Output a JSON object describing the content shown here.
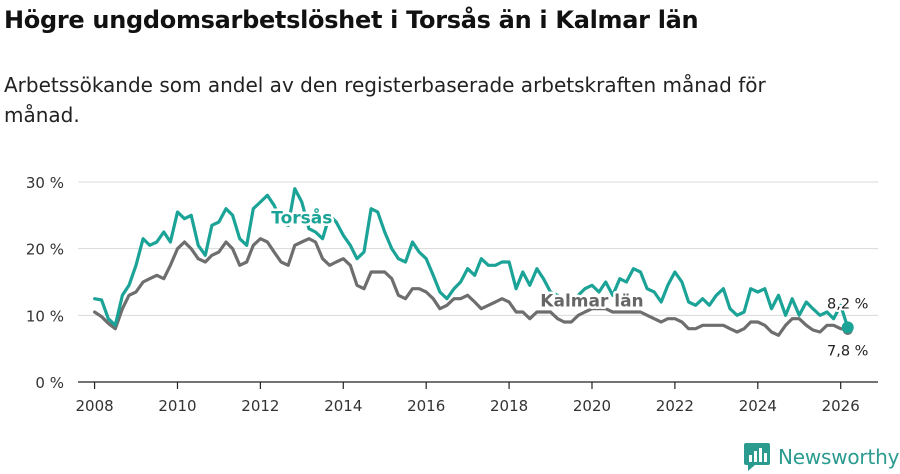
{
  "header": {
    "title": "Högre ungdomsarbetslöshet i Torsås än i Kalmar län",
    "subtitle": "Arbetssökande som andel av den registerbaserade arbetskraften månad för månad."
  },
  "brand": {
    "name": "Newsworthy",
    "color": "#2a9b8e"
  },
  "chart_data": {
    "type": "line",
    "title": "Högre ungdomsarbetslöshet i Torsås än i Kalmar län",
    "subtitle": "Arbetssökande som andel av den registerbaserade arbetskraften månad för månad.",
    "xlabel": "",
    "ylabel": "",
    "xlim": [
      2007.6,
      2026.9
    ],
    "ylim": [
      0,
      30
    ],
    "x_ticks": [
      2008,
      2010,
      2012,
      2014,
      2016,
      2018,
      2020,
      2022,
      2024,
      2026
    ],
    "x_tick_labels": [
      "2008",
      "2010",
      "2012",
      "2014",
      "2016",
      "2018",
      "2020",
      "2022",
      "2024",
      "2026"
    ],
    "y_ticks": [
      0,
      10,
      20,
      30
    ],
    "y_tick_labels": [
      "0 %",
      "10 %",
      "20 %",
      "30 %"
    ],
    "grid": true,
    "series": [
      {
        "name": "Torsås",
        "label": "Torsås",
        "color": "#1aa396",
        "end_label": "8,2 %",
        "points": [
          [
            2008.0,
            12.5
          ],
          [
            2008.17,
            12.3
          ],
          [
            2008.33,
            9.5
          ],
          [
            2008.5,
            8.5
          ],
          [
            2008.67,
            13.0
          ],
          [
            2008.83,
            14.5
          ],
          [
            2009.0,
            17.5
          ],
          [
            2009.17,
            21.5
          ],
          [
            2009.33,
            20.5
          ],
          [
            2009.5,
            21.0
          ],
          [
            2009.67,
            22.5
          ],
          [
            2009.83,
            21.0
          ],
          [
            2010.0,
            25.5
          ],
          [
            2010.17,
            24.5
          ],
          [
            2010.33,
            25.0
          ],
          [
            2010.5,
            20.5
          ],
          [
            2010.67,
            19.0
          ],
          [
            2010.83,
            23.5
          ],
          [
            2011.0,
            24.0
          ],
          [
            2011.17,
            26.0
          ],
          [
            2011.33,
            25.0
          ],
          [
            2011.5,
            21.5
          ],
          [
            2011.67,
            20.5
          ],
          [
            2011.83,
            26.0
          ],
          [
            2012.0,
            27.0
          ],
          [
            2012.17,
            28.0
          ],
          [
            2012.33,
            26.5
          ],
          [
            2012.5,
            24.0
          ],
          [
            2012.67,
            23.5
          ],
          [
            2012.83,
            29.0
          ],
          [
            2013.0,
            27.0
          ],
          [
            2013.17,
            23.0
          ],
          [
            2013.33,
            22.5
          ],
          [
            2013.5,
            21.5
          ],
          [
            2013.67,
            25.0
          ],
          [
            2013.83,
            24.0
          ],
          [
            2014.0,
            22.0
          ],
          [
            2014.17,
            20.5
          ],
          [
            2014.33,
            18.5
          ],
          [
            2014.5,
            19.5
          ],
          [
            2014.67,
            26.0
          ],
          [
            2014.83,
            25.5
          ],
          [
            2015.0,
            22.5
          ],
          [
            2015.17,
            20.0
          ],
          [
            2015.33,
            18.5
          ],
          [
            2015.5,
            18.0
          ],
          [
            2015.67,
            21.0
          ],
          [
            2015.83,
            19.5
          ],
          [
            2016.0,
            18.5
          ],
          [
            2016.17,
            16.0
          ],
          [
            2016.33,
            13.5
          ],
          [
            2016.5,
            12.5
          ],
          [
            2016.67,
            14.0
          ],
          [
            2016.83,
            15.0
          ],
          [
            2017.0,
            17.0
          ],
          [
            2017.17,
            16.0
          ],
          [
            2017.33,
            18.5
          ],
          [
            2017.5,
            17.5
          ],
          [
            2017.67,
            17.5
          ],
          [
            2017.83,
            18.0
          ],
          [
            2018.0,
            18.0
          ],
          [
            2018.17,
            14.0
          ],
          [
            2018.33,
            16.5
          ],
          [
            2018.5,
            14.5
          ],
          [
            2018.67,
            17.0
          ],
          [
            2018.83,
            15.5
          ],
          [
            2019.0,
            13.5
          ],
          [
            2019.17,
            13.0
          ],
          [
            2019.33,
            12.5
          ],
          [
            2019.5,
            11.5
          ],
          [
            2019.67,
            13.0
          ],
          [
            2019.83,
            14.0
          ],
          [
            2020.0,
            14.5
          ],
          [
            2020.17,
            13.5
          ],
          [
            2020.33,
            15.0
          ],
          [
            2020.5,
            13.0
          ],
          [
            2020.67,
            15.5
          ],
          [
            2020.83,
            15.0
          ],
          [
            2021.0,
            17.0
          ],
          [
            2021.17,
            16.5
          ],
          [
            2021.33,
            14.0
          ],
          [
            2021.5,
            13.5
          ],
          [
            2021.67,
            12.0
          ],
          [
            2021.83,
            14.5
          ],
          [
            2022.0,
            16.5
          ],
          [
            2022.17,
            15.0
          ],
          [
            2022.33,
            12.0
          ],
          [
            2022.5,
            11.5
          ],
          [
            2022.67,
            12.5
          ],
          [
            2022.83,
            11.5
          ],
          [
            2023.0,
            13.0
          ],
          [
            2023.17,
            14.0
          ],
          [
            2023.33,
            11.0
          ],
          [
            2023.5,
            10.0
          ],
          [
            2023.67,
            10.5
          ],
          [
            2023.83,
            14.0
          ],
          [
            2024.0,
            13.5
          ],
          [
            2024.17,
            14.0
          ],
          [
            2024.33,
            11.0
          ],
          [
            2024.5,
            13.0
          ],
          [
            2024.67,
            10.0
          ],
          [
            2024.83,
            12.5
          ],
          [
            2025.0,
            10.0
          ],
          [
            2025.17,
            12.0
          ],
          [
            2025.33,
            11.0
          ],
          [
            2025.5,
            10.0
          ],
          [
            2025.67,
            10.5
          ],
          [
            2025.83,
            9.5
          ],
          [
            2026.0,
            11.5
          ],
          [
            2026.17,
            8.2
          ]
        ]
      },
      {
        "name": "Kalmar län",
        "label": "Kalmar län",
        "color": "#6e6e6e",
        "end_label": "7,8 %",
        "points": [
          [
            2008.0,
            10.5
          ],
          [
            2008.17,
            9.8
          ],
          [
            2008.33,
            8.8
          ],
          [
            2008.5,
            8.0
          ],
          [
            2008.67,
            11.0
          ],
          [
            2008.83,
            13.0
          ],
          [
            2009.0,
            13.5
          ],
          [
            2009.17,
            15.0
          ],
          [
            2009.33,
            15.5
          ],
          [
            2009.5,
            16.0
          ],
          [
            2009.67,
            15.5
          ],
          [
            2009.83,
            17.5
          ],
          [
            2010.0,
            20.0
          ],
          [
            2010.17,
            21.0
          ],
          [
            2010.33,
            20.0
          ],
          [
            2010.5,
            18.5
          ],
          [
            2010.67,
            18.0
          ],
          [
            2010.83,
            19.0
          ],
          [
            2011.0,
            19.5
          ],
          [
            2011.17,
            21.0
          ],
          [
            2011.33,
            20.0
          ],
          [
            2011.5,
            17.5
          ],
          [
            2011.67,
            18.0
          ],
          [
            2011.83,
            20.5
          ],
          [
            2012.0,
            21.5
          ],
          [
            2012.17,
            21.0
          ],
          [
            2012.33,
            19.5
          ],
          [
            2012.5,
            18.0
          ],
          [
            2012.67,
            17.5
          ],
          [
            2012.83,
            20.5
          ],
          [
            2013.0,
            21.0
          ],
          [
            2013.17,
            21.5
          ],
          [
            2013.33,
            21.0
          ],
          [
            2013.5,
            18.5
          ],
          [
            2013.67,
            17.5
          ],
          [
            2013.83,
            18.0
          ],
          [
            2014.0,
            18.5
          ],
          [
            2014.17,
            17.5
          ],
          [
            2014.33,
            14.5
          ],
          [
            2014.5,
            14.0
          ],
          [
            2014.67,
            16.5
          ],
          [
            2014.83,
            16.5
          ],
          [
            2015.0,
            16.5
          ],
          [
            2015.17,
            15.5
          ],
          [
            2015.33,
            13.0
          ],
          [
            2015.5,
            12.5
          ],
          [
            2015.67,
            14.0
          ],
          [
            2015.83,
            14.0
          ],
          [
            2016.0,
            13.5
          ],
          [
            2016.17,
            12.5
          ],
          [
            2016.33,
            11.0
          ],
          [
            2016.5,
            11.5
          ],
          [
            2016.67,
            12.5
          ],
          [
            2016.83,
            12.5
          ],
          [
            2017.0,
            13.0
          ],
          [
            2017.17,
            12.0
          ],
          [
            2017.33,
            11.0
          ],
          [
            2017.5,
            11.5
          ],
          [
            2017.67,
            12.0
          ],
          [
            2017.83,
            12.5
          ],
          [
            2018.0,
            12.0
          ],
          [
            2018.17,
            10.5
          ],
          [
            2018.33,
            10.5
          ],
          [
            2018.5,
            9.5
          ],
          [
            2018.67,
            10.5
          ],
          [
            2018.83,
            10.5
          ],
          [
            2019.0,
            10.5
          ],
          [
            2019.17,
            9.5
          ],
          [
            2019.33,
            9.0
          ],
          [
            2019.5,
            9.0
          ],
          [
            2019.67,
            10.0
          ],
          [
            2019.83,
            10.5
          ],
          [
            2020.0,
            11.0
          ],
          [
            2020.17,
            11.0
          ],
          [
            2020.33,
            11.0
          ],
          [
            2020.5,
            10.5
          ],
          [
            2020.67,
            10.5
          ],
          [
            2020.83,
            10.5
          ],
          [
            2021.0,
            10.5
          ],
          [
            2021.17,
            10.5
          ],
          [
            2021.33,
            10.0
          ],
          [
            2021.5,
            9.5
          ],
          [
            2021.67,
            9.0
          ],
          [
            2021.83,
            9.5
          ],
          [
            2022.0,
            9.5
          ],
          [
            2022.17,
            9.0
          ],
          [
            2022.33,
            8.0
          ],
          [
            2022.5,
            8.0
          ],
          [
            2022.67,
            8.5
          ],
          [
            2022.83,
            8.5
          ],
          [
            2023.0,
            8.5
          ],
          [
            2023.17,
            8.5
          ],
          [
            2023.33,
            8.0
          ],
          [
            2023.5,
            7.5
          ],
          [
            2023.67,
            8.0
          ],
          [
            2023.83,
            9.0
          ],
          [
            2024.0,
            9.0
          ],
          [
            2024.17,
            8.5
          ],
          [
            2024.33,
            7.5
          ],
          [
            2024.5,
            7.0
          ],
          [
            2024.67,
            8.5
          ],
          [
            2024.83,
            9.5
          ],
          [
            2025.0,
            9.5
          ],
          [
            2025.17,
            8.5
          ],
          [
            2025.33,
            7.8
          ],
          [
            2025.5,
            7.5
          ],
          [
            2025.67,
            8.5
          ],
          [
            2025.83,
            8.5
          ],
          [
            2026.0,
            8.0
          ],
          [
            2026.17,
            7.8
          ]
        ]
      }
    ]
  }
}
